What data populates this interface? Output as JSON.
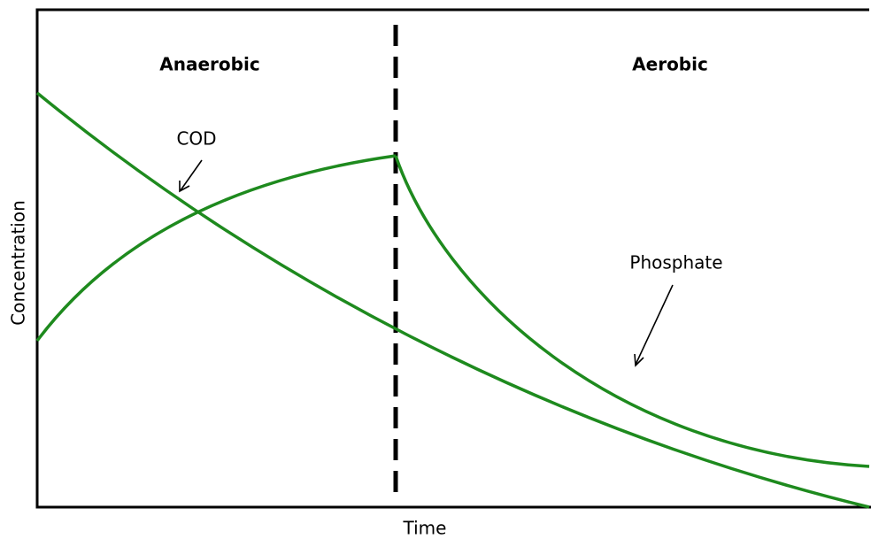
{
  "phases": [
    "Anaerobic",
    "Aerobic"
  ],
  "curves": [
    "COD",
    "Phosphate"
  ],
  "axes": {
    "x": "Time",
    "y": "Concentration"
  }
}
